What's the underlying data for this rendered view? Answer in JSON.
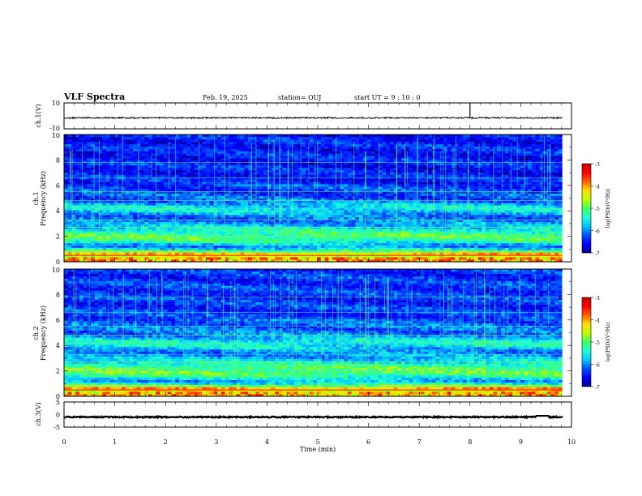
{
  "header": {
    "title": "VLF Spectra",
    "date": "Feb. 19, 2025",
    "station": "station= OUJ",
    "start_ut": "start  UT  =   9  : 10 : 0"
  },
  "colors": {
    "spectrogram_colormap": [
      "#00008f",
      "#0000ff",
      "#0050ff",
      "#00c8ff",
      "#20ffd0",
      "#40ff60",
      "#c0ff00",
      "#ffe000",
      "#ff6000",
      "#ff0000",
      "#c00000"
    ],
    "waveform_line": "#000000",
    "colorbar_tick_color": "#000000"
  },
  "chart_data": [
    {
      "type": "line",
      "panel": "ch1-waveform",
      "ylabel": "ch.1(V)",
      "ylim": [
        -10,
        10
      ],
      "yticks": [
        "10",
        "-10"
      ],
      "xlim": [
        0,
        10
      ],
      "x_data_range": [
        0,
        9.82
      ],
      "series": [
        {
          "mean": -1.5,
          "amplitude_approx": 0.6,
          "spike_at_min": 8.0,
          "spike_peak": 10
        }
      ]
    },
    {
      "type": "heatmap",
      "panel": "ch1-spectrogram",
      "ylabel_line1": "ch.1",
      "ylabel_line2": "Frequency  (kHz)",
      "ylim": [
        0,
        10
      ],
      "yticks": [
        "0",
        "2",
        "4",
        "6",
        "8",
        "10"
      ],
      "xlim": [
        0,
        10
      ],
      "x_data_range": [
        0,
        9.82
      ],
      "colorbar": {
        "label": "log(PSD)(V²/Hz)",
        "range": [
          -7,
          -3
        ],
        "ticks": [
          "-3",
          "-4",
          "-5",
          "-6",
          "-7"
        ]
      }
    },
    {
      "type": "heatmap",
      "panel": "ch2-spectrogram",
      "ylabel_line1": "ch.2",
      "ylabel_line2": "Frequency  (kHz)",
      "ylim": [
        0,
        10
      ],
      "yticks": [
        "0",
        "2",
        "4",
        "6",
        "8",
        "10"
      ],
      "xlim": [
        0,
        10
      ],
      "x_data_range": [
        0,
        9.82
      ],
      "colorbar": {
        "label": "log(PSD)(V²/Hz)",
        "range": [
          -7,
          -3
        ],
        "ticks": [
          "-3",
          "-4",
          "-5",
          "-6",
          "-7"
        ]
      }
    },
    {
      "type": "line",
      "panel": "ch3-waveform",
      "ylabel": "ch.3(V)",
      "ylim": [
        -5,
        5
      ],
      "yticks": [
        "5",
        "0",
        "-5"
      ],
      "xlim": [
        0,
        10
      ],
      "x_data_range": [
        0,
        9.82
      ],
      "series": [
        {
          "mean": -1.0,
          "amplitude_approx": 0.25,
          "dip_from_min": 9.3,
          "dip_to_min": 9.55
        }
      ]
    }
  ],
  "xaxis": {
    "label": "Time  (min)",
    "ticks": [
      "0",
      "1",
      "2",
      "3",
      "4",
      "5",
      "6",
      "7",
      "8",
      "9",
      "10"
    ],
    "range": [
      0,
      10
    ]
  }
}
